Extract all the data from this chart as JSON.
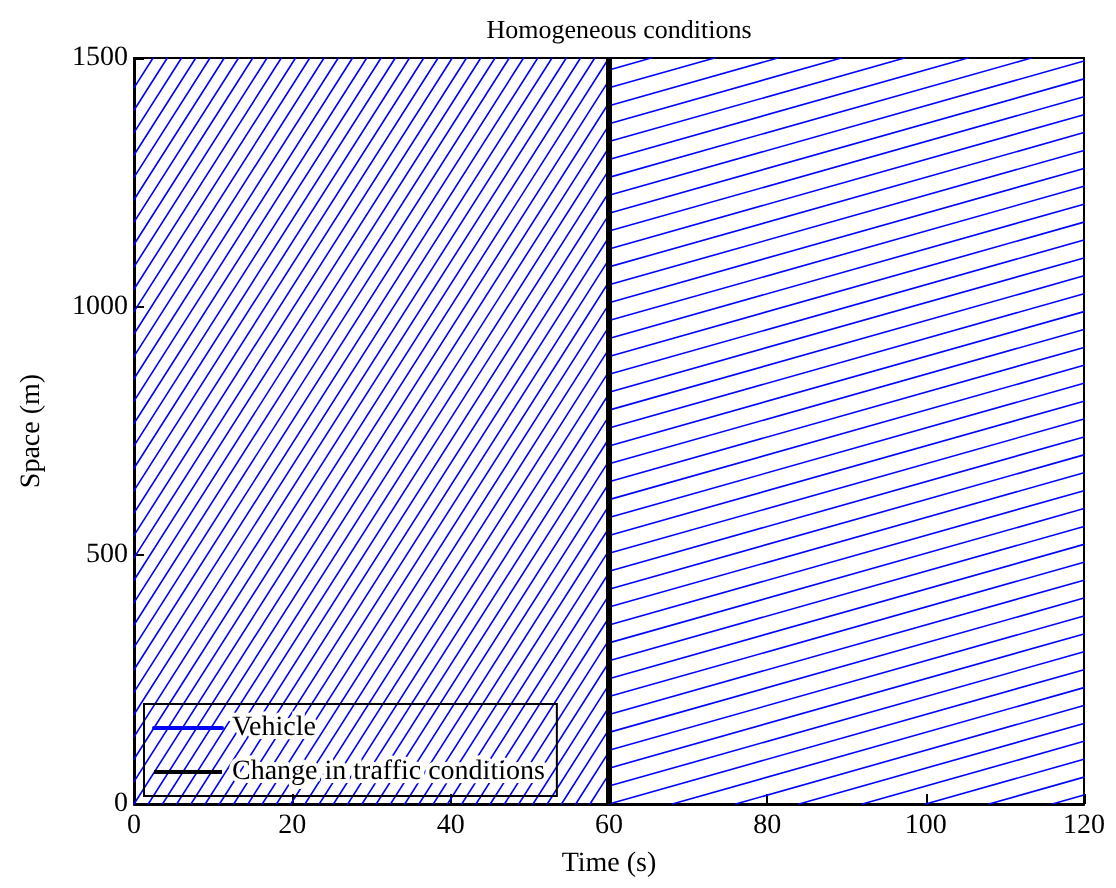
{
  "chart_data": {
    "type": "line",
    "title": "Homogeneous conditions",
    "xlabel": "Time (s)",
    "ylabel": "Space (m)",
    "xlim": [
      0,
      120
    ],
    "xticks": [
      0,
      20,
      40,
      60,
      80,
      100,
      120
    ],
    "ylim": [
      0,
      1500
    ],
    "yticks": [
      0,
      500,
      1000,
      1500
    ],
    "grid": false,
    "legend": "bottom left",
    "line_style": "solid",
    "marker": "none",
    "ref_lines": [
      {
        "axis": "x",
        "value": 60,
        "label": "Change in traffic conditions",
        "color": "#000000"
      }
    ],
    "series": [
      {
        "name": "Vehicle",
        "color": "#0000ff",
        "x": [
          0,
          60
        ],
        "values": [
          0,
          1500
        ]
      },
      {
        "color": "#0000ff",
        "x": [
          0,
          58.2
        ],
        "values": [
          45,
          1500
        ]
      },
      {
        "color": "#0000ff",
        "x": [
          0,
          56.4
        ],
        "values": [
          90,
          1500
        ]
      },
      {
        "color": "#0000ff",
        "x": [
          0,
          54.6
        ],
        "values": [
          135,
          1500
        ]
      },
      {
        "color": "#0000ff",
        "x": [
          0,
          52.8
        ],
        "values": [
          180,
          1500
        ]
      },
      {
        "color": "#0000ff",
        "x": [
          0,
          51
        ],
        "values": [
          225,
          1500
        ]
      },
      {
        "color": "#0000ff",
        "x": [
          0,
          49.2
        ],
        "values": [
          270,
          1500
        ]
      },
      {
        "color": "#0000ff",
        "x": [
          0,
          47.4
        ],
        "values": [
          315,
          1500
        ]
      },
      {
        "color": "#0000ff",
        "x": [
          0,
          45.6
        ],
        "values": [
          360,
          1500
        ]
      },
      {
        "color": "#0000ff",
        "x": [
          0,
          43.8
        ],
        "values": [
          405,
          1500
        ]
      },
      {
        "color": "#0000ff",
        "x": [
          0,
          42
        ],
        "values": [
          450,
          1500
        ]
      },
      {
        "color": "#0000ff",
        "x": [
          0,
          40.2
        ],
        "values": [
          495,
          1500
        ]
      },
      {
        "color": "#0000ff",
        "x": [
          0,
          38.4
        ],
        "values": [
          540,
          1500
        ]
      },
      {
        "color": "#0000ff",
        "x": [
          0,
          36.6
        ],
        "values": [
          585,
          1500
        ]
      },
      {
        "color": "#0000ff",
        "x": [
          0,
          34.8
        ],
        "values": [
          630,
          1500
        ]
      },
      {
        "color": "#0000ff",
        "x": [
          0,
          33
        ],
        "values": [
          675,
          1500
        ]
      },
      {
        "color": "#0000ff",
        "x": [
          0,
          31.2
        ],
        "values": [
          720,
          1500
        ]
      },
      {
        "color": "#0000ff",
        "x": [
          0,
          29.4
        ],
        "values": [
          765,
          1500
        ]
      },
      {
        "color": "#0000ff",
        "x": [
          0,
          27.6
        ],
        "values": [
          810,
          1500
        ]
      },
      {
        "color": "#0000ff",
        "x": [
          0,
          25.8
        ],
        "values": [
          855,
          1500
        ]
      },
      {
        "color": "#0000ff",
        "x": [
          0,
          24
        ],
        "values": [
          900,
          1500
        ]
      },
      {
        "color": "#0000ff",
        "x": [
          0,
          22.2
        ],
        "values": [
          945,
          1500
        ]
      },
      {
        "color": "#0000ff",
        "x": [
          0,
          20.4
        ],
        "values": [
          990,
          1500
        ]
      },
      {
        "color": "#0000ff",
        "x": [
          0,
          18.6
        ],
        "values": [
          1035,
          1500
        ]
      },
      {
        "color": "#0000ff",
        "x": [
          0,
          16.8
        ],
        "values": [
          1080,
          1500
        ]
      },
      {
        "color": "#0000ff",
        "x": [
          0,
          15
        ],
        "values": [
          1125,
          1500
        ]
      },
      {
        "color": "#0000ff",
        "x": [
          0,
          13.2
        ],
        "values": [
          1170,
          1500
        ]
      },
      {
        "color": "#0000ff",
        "x": [
          0,
          11.4
        ],
        "values": [
          1215,
          1500
        ]
      },
      {
        "color": "#0000ff",
        "x": [
          0,
          9.6
        ],
        "values": [
          1260,
          1500
        ]
      },
      {
        "color": "#0000ff",
        "x": [
          0,
          7.8
        ],
        "values": [
          1305,
          1500
        ]
      },
      {
        "color": "#0000ff",
        "x": [
          0,
          6
        ],
        "values": [
          1350,
          1500
        ]
      },
      {
        "color": "#0000ff",
        "x": [
          0,
          4.2
        ],
        "values": [
          1395,
          1500
        ]
      },
      {
        "color": "#0000ff",
        "x": [
          0,
          2.4
        ],
        "values": [
          1440,
          1500
        ]
      },
      {
        "color": "#0000ff",
        "x": [
          1.8,
          60
        ],
        "values": [
          0,
          1455
        ]
      },
      {
        "color": "#0000ff",
        "x": [
          3.6,
          60
        ],
        "values": [
          0,
          1410
        ]
      },
      {
        "color": "#0000ff",
        "x": [
          5.4,
          60
        ],
        "values": [
          0,
          1365
        ]
      },
      {
        "color": "#0000ff",
        "x": [
          7.2,
          60
        ],
        "values": [
          0,
          1320
        ]
      },
      {
        "color": "#0000ff",
        "x": [
          9,
          60
        ],
        "values": [
          0,
          1275
        ]
      },
      {
        "color": "#0000ff",
        "x": [
          10.8,
          60
        ],
        "values": [
          0,
          1230
        ]
      },
      {
        "color": "#0000ff",
        "x": [
          12.6,
          60
        ],
        "values": [
          0,
          1185
        ]
      },
      {
        "color": "#0000ff",
        "x": [
          14.4,
          60
        ],
        "values": [
          0,
          1140
        ]
      },
      {
        "color": "#0000ff",
        "x": [
          16.2,
          60
        ],
        "values": [
          0,
          1095
        ]
      },
      {
        "color": "#0000ff",
        "x": [
          18,
          60
        ],
        "values": [
          0,
          1050
        ]
      },
      {
        "color": "#0000ff",
        "x": [
          19.8,
          60
        ],
        "values": [
          0,
          1005
        ]
      },
      {
        "color": "#0000ff",
        "x": [
          21.6,
          60
        ],
        "values": [
          0,
          960
        ]
      },
      {
        "color": "#0000ff",
        "x": [
          23.4,
          60
        ],
        "values": [
          0,
          915
        ]
      },
      {
        "color": "#0000ff",
        "x": [
          25.2,
          60
        ],
        "values": [
          0,
          870
        ]
      },
      {
        "color": "#0000ff",
        "x": [
          27,
          60
        ],
        "values": [
          0,
          825
        ]
      },
      {
        "color": "#0000ff",
        "x": [
          28.8,
          60
        ],
        "values": [
          0,
          780
        ]
      },
      {
        "color": "#0000ff",
        "x": [
          30.6,
          60
        ],
        "values": [
          0,
          735
        ]
      },
      {
        "color": "#0000ff",
        "x": [
          32.4,
          60
        ],
        "values": [
          0,
          690
        ]
      },
      {
        "color": "#0000ff",
        "x": [
          34.2,
          60
        ],
        "values": [
          0,
          645
        ]
      },
      {
        "color": "#0000ff",
        "x": [
          36,
          60
        ],
        "values": [
          0,
          600
        ]
      },
      {
        "color": "#0000ff",
        "x": [
          37.8,
          60
        ],
        "values": [
          0,
          555
        ]
      },
      {
        "color": "#0000ff",
        "x": [
          39.6,
          60
        ],
        "values": [
          0,
          510
        ]
      },
      {
        "color": "#0000ff",
        "x": [
          41.4,
          60
        ],
        "values": [
          0,
          465
        ]
      },
      {
        "color": "#0000ff",
        "x": [
          43.2,
          60
        ],
        "values": [
          0,
          420
        ]
      },
      {
        "color": "#0000ff",
        "x": [
          45,
          60
        ],
        "values": [
          0,
          375
        ]
      },
      {
        "color": "#0000ff",
        "x": [
          46.8,
          60
        ],
        "values": [
          0,
          330
        ]
      },
      {
        "color": "#0000ff",
        "x": [
          48.6,
          60
        ],
        "values": [
          0,
          285
        ]
      },
      {
        "color": "#0000ff",
        "x": [
          50.4,
          60
        ],
        "values": [
          0,
          240
        ]
      },
      {
        "color": "#0000ff",
        "x": [
          52.2,
          60
        ],
        "values": [
          0,
          195
        ]
      },
      {
        "color": "#0000ff",
        "x": [
          54,
          60
        ],
        "values": [
          0,
          150
        ]
      },
      {
        "color": "#0000ff",
        "x": [
          55.8,
          60
        ],
        "values": [
          0,
          105
        ]
      },
      {
        "color": "#0000ff",
        "x": [
          57.6,
          60
        ],
        "values": [
          0,
          60
        ]
      },
      {
        "color": "#0000ff",
        "x": [
          60,
          120
        ],
        "values": [
          0,
          270
        ]
      },
      {
        "color": "#0000ff",
        "x": [
          60,
          120
        ],
        "values": [
          36,
          306
        ]
      },
      {
        "color": "#0000ff",
        "x": [
          60,
          120
        ],
        "values": [
          72,
          342
        ]
      },
      {
        "color": "#0000ff",
        "x": [
          60,
          120
        ],
        "values": [
          108,
          378
        ]
      },
      {
        "color": "#0000ff",
        "x": [
          60,
          120
        ],
        "values": [
          144,
          414
        ]
      },
      {
        "color": "#0000ff",
        "x": [
          60,
          120
        ],
        "values": [
          180,
          450
        ]
      },
      {
        "color": "#0000ff",
        "x": [
          60,
          120
        ],
        "values": [
          216,
          486
        ]
      },
      {
        "color": "#0000ff",
        "x": [
          60,
          120
        ],
        "values": [
          252,
          522
        ]
      },
      {
        "color": "#0000ff",
        "x": [
          60,
          120
        ],
        "values": [
          288,
          558
        ]
      },
      {
        "color": "#0000ff",
        "x": [
          60,
          120
        ],
        "values": [
          324,
          594
        ]
      },
      {
        "color": "#0000ff",
        "x": [
          60,
          120
        ],
        "values": [
          360,
          630
        ]
      },
      {
        "color": "#0000ff",
        "x": [
          60,
          120
        ],
        "values": [
          396,
          666
        ]
      },
      {
        "color": "#0000ff",
        "x": [
          60,
          120
        ],
        "values": [
          432,
          702
        ]
      },
      {
        "color": "#0000ff",
        "x": [
          60,
          120
        ],
        "values": [
          468,
          738
        ]
      },
      {
        "color": "#0000ff",
        "x": [
          60,
          120
        ],
        "values": [
          504,
          774
        ]
      },
      {
        "color": "#0000ff",
        "x": [
          60,
          120
        ],
        "values": [
          540,
          810
        ]
      },
      {
        "color": "#0000ff",
        "x": [
          60,
          120
        ],
        "values": [
          576,
          846
        ]
      },
      {
        "color": "#0000ff",
        "x": [
          60,
          120
        ],
        "values": [
          612,
          882
        ]
      },
      {
        "color": "#0000ff",
        "x": [
          60,
          120
        ],
        "values": [
          648,
          918
        ]
      },
      {
        "color": "#0000ff",
        "x": [
          60,
          120
        ],
        "values": [
          684,
          954
        ]
      },
      {
        "color": "#0000ff",
        "x": [
          60,
          120
        ],
        "values": [
          720,
          990
        ]
      },
      {
        "color": "#0000ff",
        "x": [
          60,
          120
        ],
        "values": [
          756,
          1026
        ]
      },
      {
        "color": "#0000ff",
        "x": [
          60,
          120
        ],
        "values": [
          792,
          1062
        ]
      },
      {
        "color": "#0000ff",
        "x": [
          60,
          120
        ],
        "values": [
          828,
          1098
        ]
      },
      {
        "color": "#0000ff",
        "x": [
          60,
          120
        ],
        "values": [
          864,
          1134
        ]
      },
      {
        "color": "#0000ff",
        "x": [
          60,
          120
        ],
        "values": [
          900,
          1170
        ]
      },
      {
        "color": "#0000ff",
        "x": [
          60,
          120
        ],
        "values": [
          936,
          1206
        ]
      },
      {
        "color": "#0000ff",
        "x": [
          60,
          120
        ],
        "values": [
          972,
          1242
        ]
      },
      {
        "color": "#0000ff",
        "x": [
          60,
          120
        ],
        "values": [
          1008,
          1278
        ]
      },
      {
        "color": "#0000ff",
        "x": [
          60,
          120
        ],
        "values": [
          1044,
          1314
        ]
      },
      {
        "color": "#0000ff",
        "x": [
          60,
          120
        ],
        "values": [
          1080,
          1350
        ]
      },
      {
        "color": "#0000ff",
        "x": [
          60,
          120
        ],
        "values": [
          1116,
          1386
        ]
      },
      {
        "color": "#0000ff",
        "x": [
          60,
          120
        ],
        "values": [
          1152,
          1422
        ]
      },
      {
        "color": "#0000ff",
        "x": [
          60,
          120
        ],
        "values": [
          1188,
          1458
        ]
      },
      {
        "color": "#0000ff",
        "x": [
          60,
          120
        ],
        "values": [
          1224,
          1494
        ]
      },
      {
        "color": "#0000ff",
        "x": [
          60,
          113.33
        ],
        "values": [
          1260,
          1500
        ]
      },
      {
        "color": "#0000ff",
        "x": [
          60,
          105.33
        ],
        "values": [
          1296,
          1500
        ]
      },
      {
        "color": "#0000ff",
        "x": [
          60,
          97.33
        ],
        "values": [
          1332,
          1500
        ]
      },
      {
        "color": "#0000ff",
        "x": [
          60,
          89.33
        ],
        "values": [
          1368,
          1500
        ]
      },
      {
        "color": "#0000ff",
        "x": [
          60,
          81.33
        ],
        "values": [
          1404,
          1500
        ]
      },
      {
        "color": "#0000ff",
        "x": [
          60,
          73.33
        ],
        "values": [
          1440,
          1500
        ]
      },
      {
        "color": "#0000ff",
        "x": [
          60,
          65.33
        ],
        "values": [
          1476,
          1500
        ]
      },
      {
        "color": "#0000ff",
        "x": [
          68,
          120
        ],
        "values": [
          0,
          234
        ]
      },
      {
        "color": "#0000ff",
        "x": [
          76,
          120
        ],
        "values": [
          0,
          198
        ]
      },
      {
        "color": "#0000ff",
        "x": [
          84,
          120
        ],
        "values": [
          0,
          162
        ]
      },
      {
        "color": "#0000ff",
        "x": [
          92,
          120
        ],
        "values": [
          0,
          126
        ]
      },
      {
        "color": "#0000ff",
        "x": [
          100,
          120
        ],
        "values": [
          0,
          90
        ]
      },
      {
        "color": "#0000ff",
        "x": [
          108,
          120
        ],
        "values": [
          0,
          54
        ]
      },
      {
        "color": "#0000ff",
        "x": [
          116,
          120
        ],
        "values": [
          0,
          18
        ]
      }
    ]
  }
}
